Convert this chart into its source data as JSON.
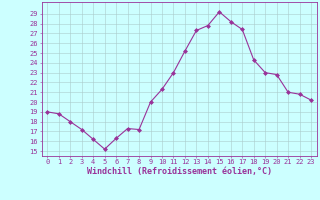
{
  "x": [
    0,
    1,
    2,
    3,
    4,
    5,
    6,
    7,
    8,
    9,
    10,
    11,
    12,
    13,
    14,
    15,
    16,
    17,
    18,
    19,
    20,
    21,
    22,
    23
  ],
  "y": [
    19.0,
    18.8,
    18.0,
    17.2,
    16.2,
    15.2,
    16.3,
    17.3,
    17.2,
    20.0,
    21.3,
    23.0,
    25.2,
    27.3,
    27.8,
    29.2,
    28.2,
    27.4,
    24.3,
    23.0,
    22.8,
    21.0,
    20.8,
    20.2
  ],
  "line_color": "#993399",
  "marker": "D",
  "marker_size": 2,
  "bg_color": "#ccffff",
  "grid_color": "#aacccc",
  "xlabel": "Windchill (Refroidissement éolien,°C)",
  "xlabel_color": "#993399",
  "tick_color": "#993399",
  "ylabel_ticks": [
    15,
    16,
    17,
    18,
    19,
    20,
    21,
    22,
    23,
    24,
    25,
    26,
    27,
    28,
    29
  ],
  "xlim": [
    -0.5,
    23.5
  ],
  "ylim": [
    14.5,
    30.2
  ],
  "tick_fontsize": 5.0,
  "xlabel_fontsize": 6.0
}
